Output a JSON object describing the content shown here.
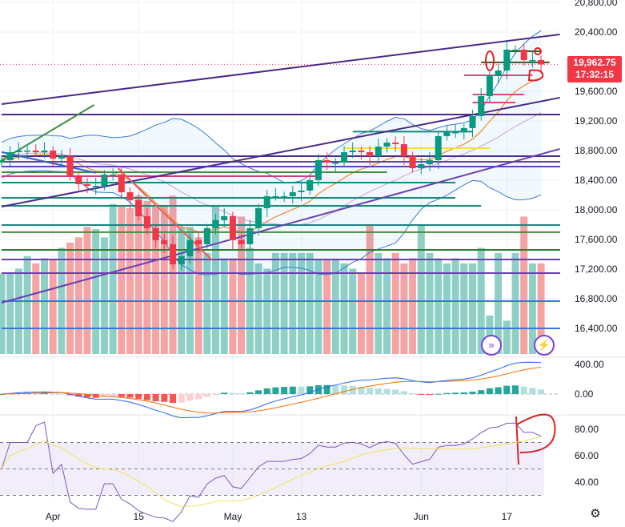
{
  "chart_data": {
    "type": "candlestick",
    "price_axis": {
      "ticks": [
        "20,800.00",
        "20,400.00",
        "19,600.00",
        "19,200.00",
        "18,800.00",
        "18,400.00",
        "18,000.00",
        "17,600.00",
        "17,200.00",
        "16,800.00",
        "16,400.00"
      ],
      "values": [
        20800,
        20400,
        19600,
        19200,
        18800,
        18400,
        18000,
        17600,
        17200,
        16800,
        16400
      ]
    },
    "time_axis": {
      "labels": [
        "Apr",
        "15",
        "May",
        "13",
        "Jun",
        "17"
      ],
      "bar_index": [
        6,
        16,
        27,
        35,
        49,
        59
      ]
    },
    "last_price": "19,962.75",
    "countdown": "17:32:15",
    "closes": [
      18670,
      18778,
      18800,
      18800,
      18778,
      18800,
      18692,
      18724,
      18454,
      18346,
      18324,
      18324,
      18476,
      18476,
      18238,
      18130,
      17914,
      17752,
      17590,
      17536,
      17265,
      17373,
      17590,
      17536,
      17752,
      17860,
      17914,
      17590,
      17536,
      17752,
      18022,
      18184,
      18184,
      18184,
      18238,
      18260,
      18400,
      18670,
      18638,
      18638,
      18778,
      18800,
      18778,
      18724,
      18854,
      18908,
      18886,
      18724,
      18562,
      18616,
      18670,
      18995,
      19049,
      19049,
      19103,
      19265,
      19535,
      19805,
      19881,
      20162,
      20162,
      20022,
      20022,
      19963
    ],
    "volume_relative": [
      77,
      77,
      82,
      94,
      87,
      92,
      90,
      102,
      107,
      112,
      122,
      120,
      112,
      144,
      142,
      140,
      152,
      147,
      142,
      142,
      152,
      122,
      122,
      112,
      97,
      142,
      92,
      92,
      132,
      102,
      87,
      82,
      97,
      97,
      97,
      97,
      97,
      90,
      90,
      90,
      87,
      82,
      77,
      124,
      97,
      92,
      97,
      87,
      92,
      124,
      97,
      92,
      87,
      92,
      87,
      87,
      102,
      37,
      97,
      32,
      97,
      132,
      87,
      87
    ],
    "horizontal_lines": [
      {
        "price": 19287,
        "color": "#4a2a8a",
        "from": 0
      },
      {
        "price": 18724,
        "color": "#4a2a8a",
        "from": 0
      },
      {
        "price": 18649,
        "color": "#6a3fb0",
        "from": 0
      },
      {
        "price": 18584,
        "color": "#6a3fb0",
        "from": 0
      },
      {
        "price": 18508,
        "color": "#3f8f3f",
        "from": 0,
        "to": 45
      },
      {
        "price": 18454,
        "color": "#c0437a",
        "from": 0,
        "to": 37
      },
      {
        "price": 18368,
        "color": "#14897a",
        "from": 0,
        "to": 53
      },
      {
        "price": 18162,
        "color": "#14897a",
        "from": 0,
        "to": 53
      },
      {
        "price": 18054,
        "color": "#14897a",
        "from": 0,
        "to": 56
      },
      {
        "price": 17795,
        "color": "#14897a",
        "from": 0
      },
      {
        "price": 17698,
        "color": "#3f8f3f",
        "from": 0
      },
      {
        "price": 17460,
        "color": "#2e7d32",
        "from": 0
      },
      {
        "price": 17330,
        "color": "#6a3fb0",
        "from": 0
      },
      {
        "price": 17146,
        "color": "#6a3fb0",
        "from": 0
      },
      {
        "price": 16768,
        "color": "#3a78d8",
        "from": 0
      },
      {
        "price": 16400,
        "color": "#3a78d8",
        "from": 0
      },
      {
        "price": 18832,
        "color": "#f5e12a",
        "from": 40,
        "to": 57
      },
      {
        "price": 19816,
        "color": "#e0457b",
        "from": 54,
        "to": 62
      },
      {
        "price": 19557,
        "color": "#e0457b",
        "from": 55,
        "to": 61
      },
      {
        "price": 19449,
        "color": "#e0457b",
        "from": 55,
        "to": 60
      },
      {
        "price": 19990,
        "color": "#2e5e1e",
        "from": 56,
        "to": 64
      },
      {
        "price": 20141,
        "color": "#2e5e1e",
        "from": 59,
        "to": 63
      },
      {
        "price": 19055,
        "color": "#14897a",
        "from": 41,
        "to": 55
      }
    ],
    "trend_lines": [
      {
        "from": [
          0,
          19427
        ],
        "to": [
          65.2,
          20368
        ],
        "color": "#4a2a8a"
      },
      {
        "from": [
          0,
          18043
        ],
        "to": [
          65.2,
          19514
        ],
        "color": "#4a2a8a"
      },
      {
        "from": [
          0,
          16746
        ],
        "to": [
          65.2,
          18822
        ],
        "color": "#6a3fb0"
      },
      {
        "from": [
          0,
          18670
        ],
        "to": [
          10.8,
          19416
        ],
        "color": "#3f8f3f"
      },
      {
        "from": [
          0,
          18780
        ],
        "to": [
          11,
          18500
        ],
        "color": "#3a5fc8"
      },
      {
        "from": [
          13.6,
          18562
        ],
        "to": [
          24.6,
          17319
        ],
        "color": "#f05a5a"
      }
    ],
    "macd_axis": {
      "ticks": [
        "400.00",
        "0.00"
      ],
      "values": [
        400,
        0
      ]
    },
    "rsi_axis": {
      "ticks": [
        "80.00",
        "60.00",
        "40.00"
      ],
      "values": [
        80,
        60,
        40
      ],
      "bands": [
        70,
        50,
        30
      ]
    },
    "colors": {
      "up": "#089981",
      "down": "#f23645",
      "vol_up": "#8fd0c6",
      "vol_down": "#f5a3a3",
      "bb": "#3a78d8",
      "ema": "#f08a24",
      "basis": "#c9a0dc",
      "rsi": "#7e57c2",
      "rsi_ma": "#f5e15a",
      "macd": "#2962ff",
      "signal": "#ff6d00"
    }
  }
}
